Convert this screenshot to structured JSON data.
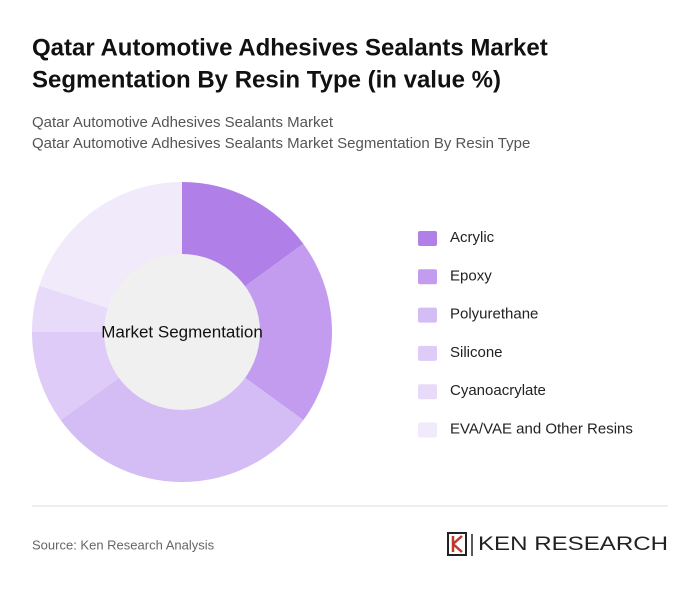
{
  "chart_data": {
    "type": "donut",
    "title": [
      "Qatar Automotive Adhesives Sealants Market",
      "Segmentation By Resin Type (in value %)"
    ],
    "subtitle": [
      "Qatar Automotive Adhesives Sealants Market",
      "Qatar Automotive Adhesives Sealants Market Segmentation By Resin Type"
    ],
    "center_label": "Market Segmentation",
    "categories": [
      "Acrylic",
      "Epoxy",
      "Polyurethane",
      "Silicone",
      "Cyanoacrylate",
      "EVA/VAE and Other Resins"
    ],
    "values": [
      15,
      20,
      30,
      10,
      5,
      20
    ],
    "colors": [
      "#b07fe8",
      "#c39cf0",
      "#d4bcf5",
      "#dfcbf7",
      "#e8dbf9",
      "#f1eafb"
    ],
    "legend": "right"
  },
  "footer": {
    "source": "Source: Ken Research Analysis",
    "brand": "KEN RESEARCH"
  }
}
